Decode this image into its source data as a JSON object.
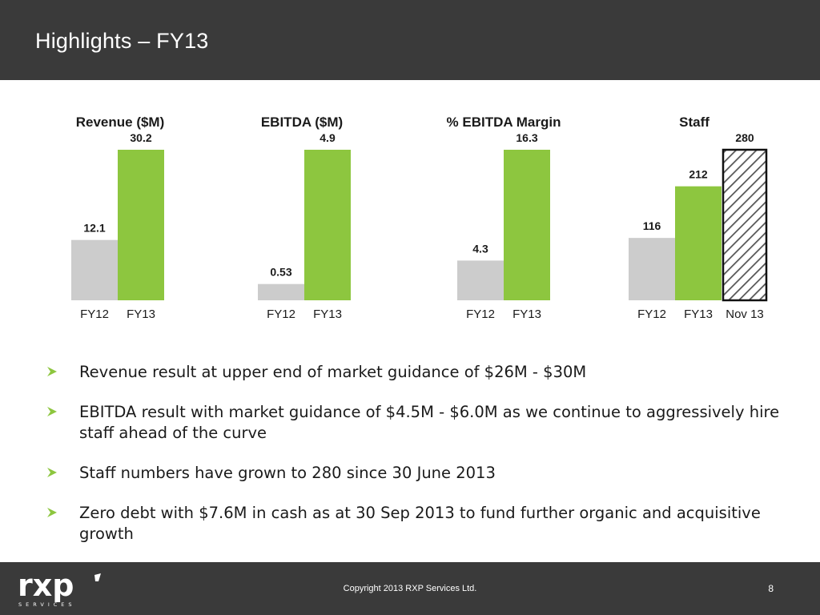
{
  "header": {
    "title": "Highlights – FY13"
  },
  "chart_data": [
    {
      "type": "bar",
      "title": "Revenue ($M)",
      "categories": [
        "FY12",
        "FY13"
      ],
      "values": [
        12.1,
        30.2
      ],
      "value_labels": [
        "12.1",
        "30.2"
      ],
      "colors": [
        "#cccccc",
        "#8dc63f"
      ],
      "patterned": [
        false,
        false
      ],
      "ylim": [
        0,
        30.2
      ]
    },
    {
      "type": "bar",
      "title": "EBITDA ($M)",
      "categories": [
        "FY12",
        "FY13"
      ],
      "values": [
        0.53,
        4.9
      ],
      "value_labels": [
        "0.53",
        "4.9"
      ],
      "colors": [
        "#cccccc",
        "#8dc63f"
      ],
      "patterned": [
        false,
        false
      ],
      "ylim": [
        0,
        4.9
      ]
    },
    {
      "type": "bar",
      "title": "% EBITDA Margin",
      "categories": [
        "FY12",
        "FY13"
      ],
      "values": [
        4.3,
        16.3
      ],
      "value_labels": [
        "4.3",
        "16.3"
      ],
      "colors": [
        "#cccccc",
        "#8dc63f"
      ],
      "patterned": [
        false,
        false
      ],
      "ylim": [
        0,
        16.3
      ]
    },
    {
      "type": "bar",
      "title": "Staff",
      "categories": [
        "FY12",
        "FY13",
        "Nov 13"
      ],
      "values": [
        116,
        212,
        280
      ],
      "value_labels": [
        "116",
        "212",
        "280"
      ],
      "colors": [
        "#cccccc",
        "#8dc63f",
        "#ffffff"
      ],
      "patterned": [
        false,
        false,
        true
      ],
      "ylim": [
        0,
        280
      ]
    }
  ],
  "bullets": [
    "Revenue result at upper end of market guidance of $26M - $30M",
    "EBITDA result with market guidance of $4.5M - $6.0M as we continue to aggressively hire staff ahead of the curve",
    "Staff numbers have grown to 280 since 30 June 2013",
    "Zero debt with $7.6M in cash as at 30 Sep 2013 to fund further organic and acquisitive growth"
  ],
  "footer": {
    "copyright": "Copyright 2013 RXP Services Ltd.",
    "page_number": "8",
    "logo_text": "rxp",
    "logo_sub": "SERVICES"
  },
  "colors": {
    "header_bg": "#3a3a3a",
    "accent_green": "#8dc63f",
    "fy12_grey": "#cccccc"
  }
}
